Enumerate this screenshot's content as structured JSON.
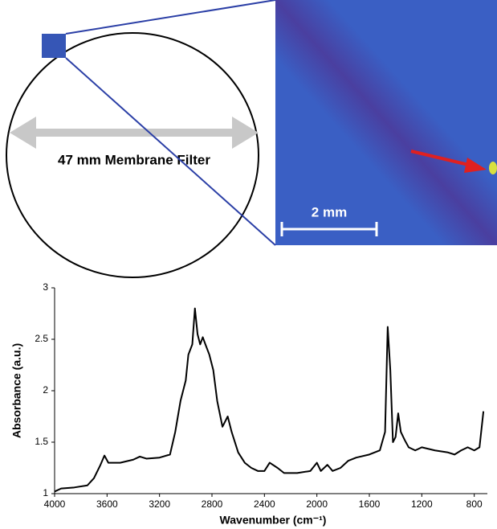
{
  "diagram": {
    "filter_label": "47 mm Membrane Filter",
    "scale_label": "2 mm"
  },
  "chart_data": {
    "type": "line",
    "x_label": "Wavenumber (cm⁻¹)",
    "y_label": "Absorbance (a.u.)",
    "xlim": [
      4000,
      700
    ],
    "ylim": [
      1,
      3
    ],
    "xticks": [
      4000,
      3600,
      3200,
      2800,
      2400,
      2000,
      1600,
      1200,
      800
    ],
    "yticks": [
      1,
      1.5,
      2,
      2.5,
      3
    ],
    "color": "#000000",
    "x": [
      4000,
      3950,
      3850,
      3750,
      3700,
      3650,
      3620,
      3590,
      3500,
      3400,
      3350,
      3300,
      3200,
      3120,
      3080,
      3040,
      3000,
      2980,
      2950,
      2930,
      2910,
      2890,
      2870,
      2850,
      2820,
      2790,
      2760,
      2720,
      2680,
      2650,
      2600,
      2550,
      2500,
      2450,
      2400,
      2360,
      2300,
      2250,
      2150,
      2050,
      2000,
      1970,
      1920,
      1880,
      1820,
      1760,
      1700,
      1600,
      1520,
      1480,
      1460,
      1440,
      1420,
      1400,
      1380,
      1360,
      1330,
      1300,
      1250,
      1200,
      1100,
      1000,
      950,
      900,
      850,
      800,
      760,
      730
    ],
    "values": [
      1.02,
      1.05,
      1.06,
      1.08,
      1.15,
      1.28,
      1.37,
      1.3,
      1.3,
      1.33,
      1.36,
      1.34,
      1.35,
      1.38,
      1.6,
      1.9,
      2.1,
      2.35,
      2.45,
      2.8,
      2.55,
      2.45,
      2.52,
      2.45,
      2.35,
      2.2,
      1.9,
      1.65,
      1.75,
      1.6,
      1.4,
      1.3,
      1.25,
      1.22,
      1.22,
      1.3,
      1.25,
      1.2,
      1.2,
      1.22,
      1.3,
      1.22,
      1.28,
      1.22,
      1.25,
      1.32,
      1.35,
      1.38,
      1.42,
      1.6,
      2.62,
      2.2,
      1.5,
      1.55,
      1.78,
      1.6,
      1.52,
      1.45,
      1.42,
      1.45,
      1.42,
      1.4,
      1.38,
      1.42,
      1.45,
      1.42,
      1.45,
      1.8
    ]
  }
}
